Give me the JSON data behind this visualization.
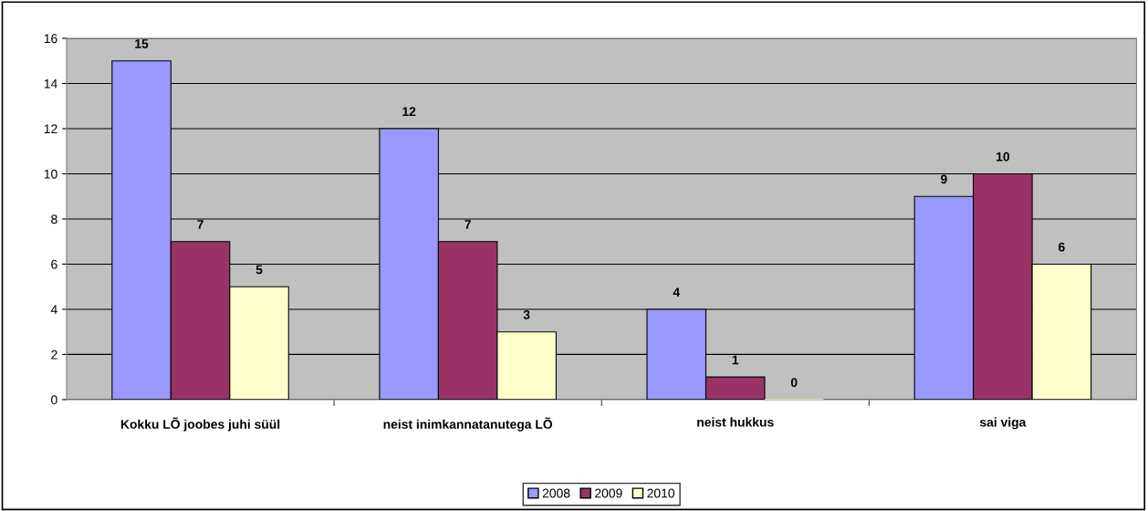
{
  "chart_data": {
    "type": "bar",
    "categories": [
      "Kokku LÕ joobes juhi süül",
      "neist inimkannatanutega LÕ",
      "neist hukkus",
      "sai viga"
    ],
    "series": [
      {
        "name": "2008",
        "color": "#9999ff",
        "values": [
          15,
          12,
          4,
          9
        ]
      },
      {
        "name": "2009",
        "color": "#993366",
        "values": [
          7,
          7,
          1,
          10
        ]
      },
      {
        "name": "2010",
        "color": "#ffffcc",
        "values": [
          5,
          3,
          0,
          6
        ]
      }
    ],
    "ylim": [
      0,
      16
    ],
    "yticks": [
      0,
      2,
      4,
      6,
      8,
      10,
      12,
      14,
      16
    ],
    "grid": "y",
    "legend": "bottom",
    "data_labels": true
  }
}
